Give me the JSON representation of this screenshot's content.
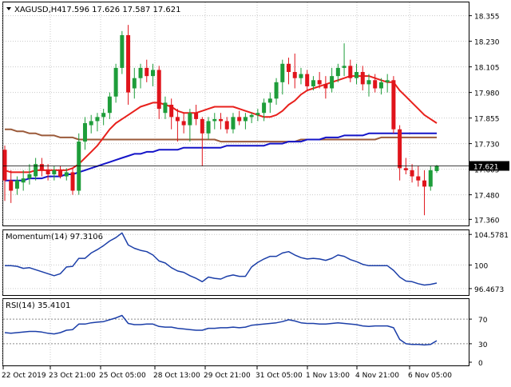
{
  "header": {
    "symbol": "XAGUSD,H4",
    "ohlc": "17.596 17.626 17.587 17.621"
  },
  "colors": {
    "up": "#1e9d3a",
    "down": "#e0141b",
    "ma_red": "#e8201c",
    "ma_blue": "#1414c8",
    "ma_brown": "#9b5a3a",
    "indicator_line": "#1b3ea8",
    "grid": "#c9c9c9",
    "border": "#000000"
  },
  "chart_data": [
    {
      "type": "candlestick",
      "title": "XAGUSD,H4",
      "ylim": [
        17.33,
        18.42
      ],
      "y_ticks": [
        "18.355",
        "18.230",
        "18.105",
        "17.980",
        "17.855",
        "17.730",
        "17.605",
        "17.480",
        "17.360"
      ],
      "current_price": "17.621",
      "x_tick_labels": [
        "22 Oct 2019",
        "23 Oct 21:00",
        "25 Oct 05:00",
        "28 Oct 13:00",
        "29 Oct 21:00",
        "31 Oct 05:00",
        "1 Nov 13:00",
        "4 Nov 21:00",
        "6 Nov 05:00"
      ],
      "candles": [
        [
          17.7,
          17.72,
          17.45,
          17.55
        ],
        [
          17.55,
          17.6,
          17.44,
          17.5
        ],
        [
          17.51,
          17.57,
          17.48,
          17.55
        ],
        [
          17.54,
          17.6,
          17.5,
          17.56
        ],
        [
          17.56,
          17.63,
          17.53,
          17.58
        ],
        [
          17.57,
          17.66,
          17.55,
          17.63
        ],
        [
          17.63,
          17.66,
          17.57,
          17.6
        ],
        [
          17.6,
          17.63,
          17.55,
          17.58
        ],
        [
          17.58,
          17.62,
          17.55,
          17.6
        ],
        [
          17.6,
          17.62,
          17.56,
          17.57
        ],
        [
          17.57,
          17.61,
          17.55,
          17.59
        ],
        [
          17.59,
          17.61,
          17.48,
          17.5
        ],
        [
          17.5,
          17.78,
          17.48,
          17.74
        ],
        [
          17.74,
          17.86,
          17.7,
          17.83
        ],
        [
          17.82,
          17.87,
          17.78,
          17.84
        ],
        [
          17.84,
          17.88,
          17.79,
          17.86
        ],
        [
          17.86,
          17.9,
          17.82,
          17.88
        ],
        [
          17.88,
          17.98,
          17.85,
          17.96
        ],
        [
          17.96,
          18.12,
          17.93,
          18.1
        ],
        [
          18.1,
          18.28,
          18.07,
          18.26
        ],
        [
          18.26,
          18.31,
          17.92,
          17.98
        ],
        [
          18.0,
          18.1,
          17.95,
          18.05
        ],
        [
          18.05,
          18.12,
          18.0,
          18.1
        ],
        [
          18.1,
          18.14,
          18.03,
          18.06
        ],
        [
          18.06,
          18.12,
          18.01,
          18.09
        ],
        [
          18.09,
          18.11,
          17.85,
          17.9
        ],
        [
          17.88,
          17.96,
          17.85,
          17.93
        ],
        [
          17.92,
          17.95,
          17.8,
          17.86
        ],
        [
          17.86,
          17.9,
          17.74,
          17.84
        ],
        [
          17.84,
          17.88,
          17.78,
          17.82
        ],
        [
          17.82,
          17.9,
          17.74,
          17.88
        ],
        [
          17.88,
          17.92,
          17.82,
          17.85
        ],
        [
          17.85,
          17.86,
          17.62,
          17.78
        ],
        [
          17.78,
          17.86,
          17.75,
          17.84
        ],
        [
          17.84,
          17.88,
          17.8,
          17.85
        ],
        [
          17.85,
          17.88,
          17.8,
          17.84
        ],
        [
          17.84,
          17.86,
          17.78,
          17.8
        ],
        [
          17.8,
          17.88,
          17.78,
          17.86
        ],
        [
          17.86,
          17.89,
          17.82,
          17.84
        ],
        [
          17.84,
          17.88,
          17.8,
          17.86
        ],
        [
          17.86,
          17.88,
          17.83,
          17.87
        ],
        [
          17.87,
          17.9,
          17.84,
          17.88
        ],
        [
          17.88,
          17.95,
          17.84,
          17.93
        ],
        [
          17.93,
          17.98,
          17.88,
          17.95
        ],
        [
          17.95,
          18.05,
          17.92,
          18.03
        ],
        [
          18.03,
          18.14,
          17.97,
          18.12
        ],
        [
          18.12,
          18.15,
          18.02,
          18.08
        ],
        [
          18.08,
          18.17,
          18.0,
          18.05
        ],
        [
          18.05,
          18.1,
          18.02,
          18.07
        ],
        [
          18.07,
          18.09,
          17.99,
          18.01
        ],
        [
          18.01,
          18.06,
          17.99,
          18.04
        ],
        [
          18.04,
          18.08,
          18.0,
          18.02
        ],
        [
          18.02,
          18.06,
          17.95,
          18.0
        ],
        [
          18.0,
          18.1,
          17.98,
          18.06
        ],
        [
          18.06,
          18.12,
          18.03,
          18.1
        ],
        [
          18.1,
          18.22,
          18.06,
          18.11
        ],
        [
          18.11,
          18.14,
          18.03,
          18.05
        ],
        [
          18.05,
          18.12,
          18.02,
          18.08
        ],
        [
          18.08,
          18.11,
          17.99,
          18.02
        ],
        [
          18.02,
          18.07,
          17.96,
          18.04
        ],
        [
          18.04,
          18.07,
          17.98,
          18.0
        ],
        [
          18.0,
          18.05,
          17.97,
          18.03
        ],
        [
          18.03,
          18.07,
          17.98,
          18.04
        ],
        [
          18.04,
          18.06,
          17.78,
          17.8
        ],
        [
          17.8,
          17.82,
          17.55,
          17.61
        ],
        [
          17.61,
          17.66,
          17.58,
          17.6
        ],
        [
          17.6,
          17.63,
          17.54,
          17.57
        ],
        [
          17.57,
          17.62,
          17.52,
          17.55
        ],
        [
          17.55,
          17.6,
          17.38,
          17.52
        ],
        [
          17.52,
          17.62,
          17.5,
          17.6
        ],
        [
          17.596,
          17.626,
          17.587,
          17.621
        ]
      ],
      "ma_red": [
        17.6,
        17.59,
        17.59,
        17.59,
        17.59,
        17.6,
        17.6,
        17.6,
        17.6,
        17.6,
        17.6,
        17.61,
        17.63,
        17.66,
        17.69,
        17.72,
        17.76,
        17.8,
        17.83,
        17.85,
        17.87,
        17.89,
        17.91,
        17.92,
        17.93,
        17.93,
        17.92,
        17.91,
        17.89,
        17.88,
        17.88,
        17.88,
        17.89,
        17.9,
        17.91,
        17.91,
        17.91,
        17.91,
        17.9,
        17.89,
        17.88,
        17.87,
        17.86,
        17.86,
        17.87,
        17.89,
        17.92,
        17.94,
        17.97,
        17.99,
        18.0,
        18.01,
        18.02,
        18.03,
        18.04,
        18.05,
        18.06,
        18.06,
        18.06,
        18.06,
        18.05,
        18.04,
        18.03,
        18.03,
        17.99,
        17.96,
        17.93,
        17.9,
        17.87,
        17.85,
        17.83
      ],
      "ma_blue": [
        17.55,
        17.55,
        17.55,
        17.55,
        17.56,
        17.56,
        17.56,
        17.57,
        17.57,
        17.57,
        17.58,
        17.58,
        17.59,
        17.6,
        17.61,
        17.62,
        17.63,
        17.64,
        17.65,
        17.66,
        17.67,
        17.68,
        17.68,
        17.69,
        17.69,
        17.7,
        17.7,
        17.7,
        17.7,
        17.71,
        17.71,
        17.71,
        17.71,
        17.71,
        17.71,
        17.71,
        17.72,
        17.72,
        17.72,
        17.72,
        17.72,
        17.72,
        17.72,
        17.73,
        17.73,
        17.73,
        17.74,
        17.74,
        17.74,
        17.75,
        17.75,
        17.75,
        17.76,
        17.76,
        17.76,
        17.77,
        17.77,
        17.77,
        17.77,
        17.78,
        17.78,
        17.78,
        17.78,
        17.78,
        17.78,
        17.78,
        17.78,
        17.78,
        17.78,
        17.78,
        17.78
      ],
      "ma_brown": [
        17.8,
        17.8,
        17.79,
        17.79,
        17.78,
        17.78,
        17.77,
        17.77,
        17.77,
        17.76,
        17.76,
        17.76,
        17.75,
        17.75,
        17.75,
        17.75,
        17.75,
        17.75,
        17.75,
        17.75,
        17.75,
        17.75,
        17.75,
        17.75,
        17.75,
        17.75,
        17.75,
        17.75,
        17.75,
        17.75,
        17.75,
        17.75,
        17.75,
        17.75,
        17.75,
        17.74,
        17.74,
        17.74,
        17.74,
        17.74,
        17.74,
        17.74,
        17.74,
        17.74,
        17.74,
        17.74,
        17.74,
        17.74,
        17.75,
        17.75,
        17.75,
        17.75,
        17.75,
        17.75,
        17.75,
        17.75,
        17.75,
        17.75,
        17.75,
        17.75,
        17.75,
        17.76,
        17.76,
        17.76,
        17.76,
        17.76,
        17.76,
        17.76,
        17.76,
        17.76,
        17.76
      ]
    },
    {
      "type": "line",
      "title": "Momentum(14) 97.3106",
      "ylim": [
        95.5,
        105.2
      ],
      "y_ticks": [
        "104.5781",
        "100",
        "96.4673"
      ],
      "values": [
        99.9,
        99.9,
        99.8,
        99.5,
        99.6,
        99.3,
        99.0,
        98.7,
        98.4,
        98.7,
        99.7,
        99.8,
        101.0,
        101.0,
        101.8,
        102.3,
        102.9,
        103.6,
        104.1,
        104.8,
        103.0,
        102.5,
        102.2,
        102.0,
        101.5,
        100.6,
        100.3,
        99.6,
        99.1,
        98.9,
        98.4,
        98.0,
        97.5,
        98.2,
        98.0,
        97.9,
        98.3,
        98.5,
        98.3,
        98.3,
        99.7,
        100.4,
        100.9,
        101.3,
        101.3,
        101.8,
        102.0,
        101.5,
        101.1,
        100.9,
        101.0,
        100.9,
        100.7,
        101.0,
        101.5,
        101.3,
        100.8,
        100.5,
        100.1,
        99.9,
        99.9,
        99.9,
        99.9,
        99.2,
        98.2,
        97.6,
        97.5,
        97.2,
        97.0,
        97.1,
        97.3
      ],
      "line_100": true
    },
    {
      "type": "line",
      "title": "RSI(14) 35.4101",
      "ylim": [
        0,
        100
      ],
      "y_ticks": [
        "70",
        "30",
        "0"
      ],
      "levels": [
        70,
        30
      ],
      "values": [
        48,
        47,
        48,
        49,
        50,
        50,
        49,
        47,
        46,
        48,
        52,
        53,
        62,
        62,
        64,
        65,
        66,
        69,
        72,
        76,
        63,
        61,
        61,
        62,
        62,
        58,
        57,
        57,
        55,
        54,
        53,
        52,
        52,
        55,
        55,
        56,
        56,
        57,
        56,
        57,
        60,
        61,
        62,
        63,
        64,
        66,
        69,
        67,
        64,
        63,
        63,
        62,
        62,
        63,
        64,
        63,
        62,
        61,
        59,
        58,
        59,
        59,
        59,
        56,
        37,
        30,
        29,
        29,
        28,
        29,
        35
      ]
    }
  ]
}
